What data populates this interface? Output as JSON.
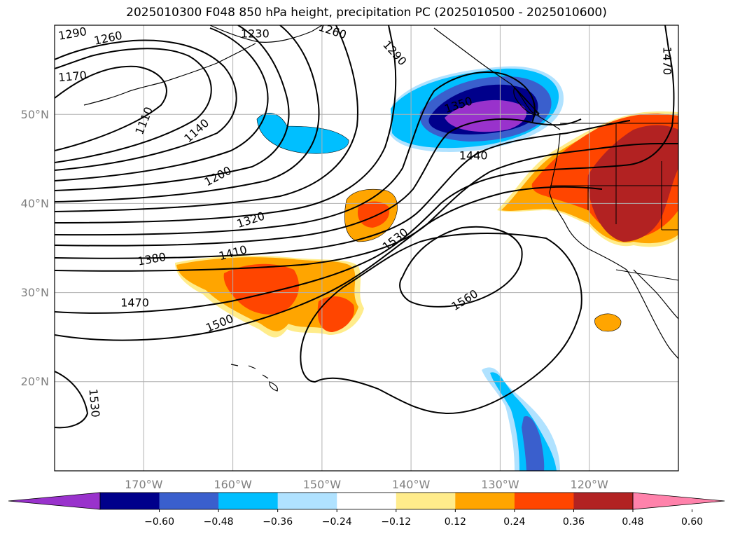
{
  "title": "2025010300 F048 850 hPa height, precipitation PC (2025010500 - 2025010600)",
  "map": {
    "extent": {
      "lon_min": -180,
      "lon_max": -110,
      "lat_min": 10,
      "lat_max": 60
    },
    "lat_labels": [
      "20°N",
      "30°N",
      "40°N",
      "50°N"
    ],
    "lon_labels": [
      "170°W",
      "160°W",
      "150°W",
      "140°W",
      "130°W",
      "120°W"
    ],
    "contour_labels": [
      {
        "text": "1290",
        "lon": -178.0,
        "lat": 59.1,
        "rot": -10
      },
      {
        "text": "1260",
        "lon": -174.0,
        "lat": 58.6,
        "rot": -12
      },
      {
        "text": "1230",
        "lon": -157.5,
        "lat": 59.1,
        "rot": 0
      },
      {
        "text": "1260",
        "lon": -148.8,
        "lat": 59.4,
        "rot": 18
      },
      {
        "text": "1290",
        "lon": -141.8,
        "lat": 56.9,
        "rot": 48
      },
      {
        "text": "1170",
        "lon": -178.0,
        "lat": 54.3,
        "rot": -5
      },
      {
        "text": "1110",
        "lon": -170.0,
        "lat": 49.3,
        "rot": -68
      },
      {
        "text": "1140",
        "lon": -164.1,
        "lat": 48.2,
        "rot": -42
      },
      {
        "text": "1350",
        "lon": -134.7,
        "lat": 51.1,
        "rot": -18
      },
      {
        "text": "1470",
        "lon": -111.2,
        "lat": 56.0,
        "rot": 90
      },
      {
        "text": "1440",
        "lon": -133.0,
        "lat": 45.4,
        "rot": 0
      },
      {
        "text": "1200",
        "lon": -161.7,
        "lat": 43.1,
        "rot": -28
      },
      {
        "text": "1320",
        "lon": -158.0,
        "lat": 38.2,
        "rot": -18
      },
      {
        "text": "1530",
        "lon": -141.8,
        "lat": 36.0,
        "rot": -38
      },
      {
        "text": "1410",
        "lon": -160.0,
        "lat": 34.5,
        "rot": -15
      },
      {
        "text": "1380",
        "lon": -169.1,
        "lat": 33.8,
        "rot": -10
      },
      {
        "text": "1470",
        "lon": -171.0,
        "lat": 28.9,
        "rot": 0
      },
      {
        "text": "1500",
        "lon": -161.5,
        "lat": 26.6,
        "rot": -22
      },
      {
        "text": "1560",
        "lon": -134.0,
        "lat": 29.2,
        "rot": -32
      },
      {
        "text": "1530",
        "lon": -175.5,
        "lat": 17.6,
        "rot": 85
      }
    ]
  },
  "colorbar": {
    "colors": [
      "#9932cc",
      "#00008b",
      "#3a5fcd",
      "#00bfff",
      "#b0e2ff",
      "#ffffff",
      "#ffec8b",
      "#ffa500",
      "#ff4500",
      "#b22222",
      "#ff82ab"
    ],
    "tick_labels": [
      "−0.60",
      "−0.48",
      "−0.36",
      "−0.24",
      "−0.12",
      "0.12",
      "0.24",
      "0.36",
      "0.48",
      "0.60"
    ]
  }
}
